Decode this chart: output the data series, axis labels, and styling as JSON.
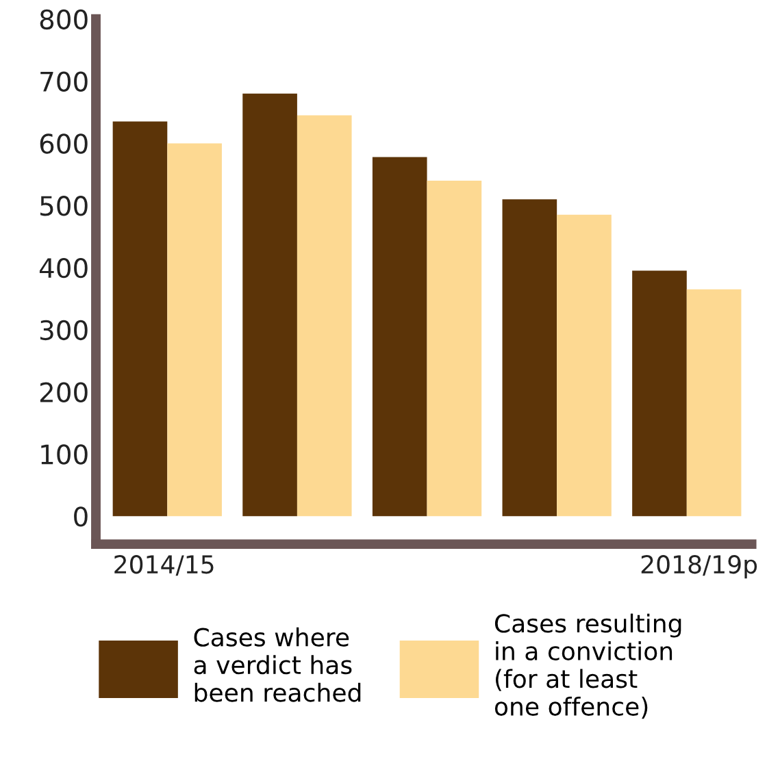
{
  "chart_data": {
    "type": "bar",
    "categories": [
      "2014/15",
      null,
      null,
      null,
      "2018/19p"
    ],
    "series": [
      {
        "name": "Cases where\na verdict has\nbeen reached",
        "color": "#5c3408",
        "values": [
          635,
          680,
          578,
          510,
          395
        ]
      },
      {
        "name": "Cases resulting\nin a conviction\n(for at least\none offence)",
        "color": "#fdd992",
        "values": [
          600,
          645,
          540,
          485,
          365
        ]
      }
    ],
    "ylim": [
      -45,
      800
    ],
    "yticks": [
      0,
      100,
      200,
      300,
      400,
      500,
      600,
      700,
      800
    ],
    "grid": false,
    "legend": "bottom"
  }
}
